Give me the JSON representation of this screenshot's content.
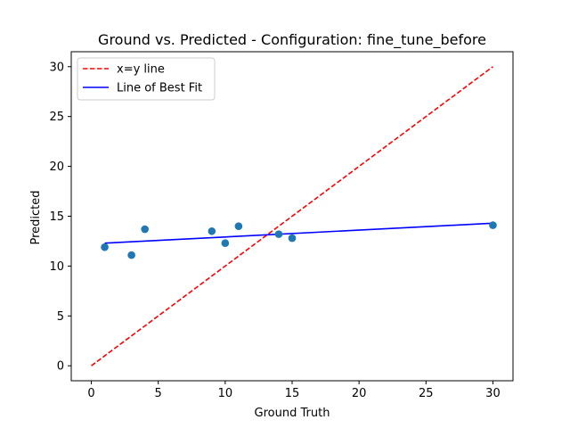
{
  "chart_data": {
    "type": "scatter",
    "title": "Ground vs. Predicted - Configuration: fine_tune_before",
    "xlabel": "Ground Truth",
    "ylabel": "Predicted",
    "xlim": [
      -1.5,
      31.5
    ],
    "ylim": [
      -1.5,
      31.5
    ],
    "xticks": [
      0,
      5,
      10,
      15,
      20,
      25,
      30
    ],
    "yticks": [
      0,
      5,
      10,
      15,
      20,
      25,
      30
    ],
    "grid": false,
    "legend_position": "upper-left",
    "points": {
      "color": "#1f77b4",
      "x": [
        1,
        3,
        4,
        9,
        10,
        11,
        14,
        15,
        30
      ],
      "y": [
        11.9,
        11.1,
        13.7,
        13.5,
        12.3,
        14.0,
        13.2,
        12.8,
        14.1
      ]
    },
    "lines": [
      {
        "name": "x=y line",
        "style": "dashed",
        "color": "#ff0000",
        "x": [
          0,
          30
        ],
        "y": [
          0,
          30
        ]
      },
      {
        "name": "Line of Best Fit",
        "style": "solid",
        "color": "#0000ff",
        "x": [
          1,
          30
        ],
        "y": [
          12.3,
          14.3
        ]
      }
    ]
  }
}
